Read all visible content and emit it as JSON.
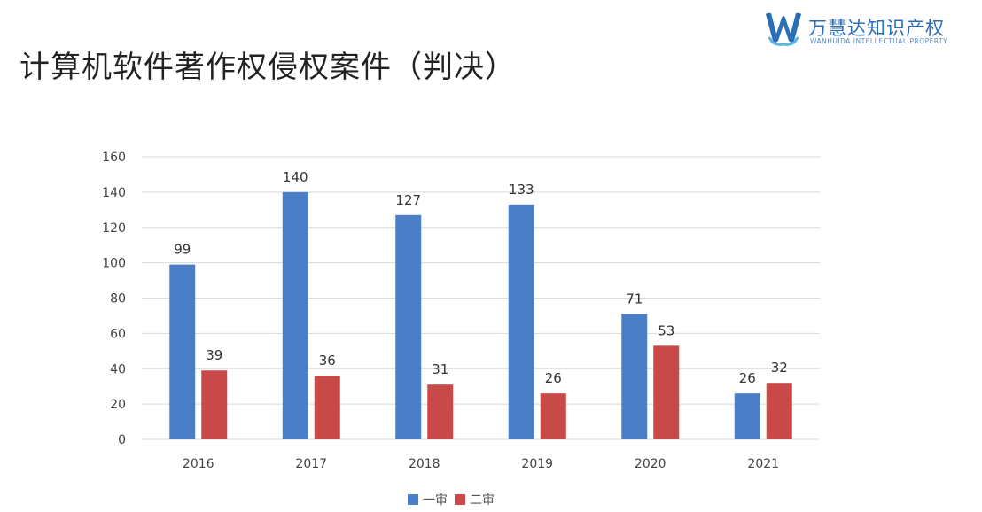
{
  "title": "计算机软件著作权侵权案件（判决）",
  "logo": {
    "name": "万慧达知识产权",
    "subtitle": "WANHUIDA INTELLECTUAL PROPERTY"
  },
  "colors": {
    "series1": "#4a7fc8",
    "series2": "#c84a48",
    "grid": "#d9d9d9",
    "axis_text": "#444444",
    "label_text": "#333333"
  },
  "chart_data": {
    "type": "bar",
    "categories": [
      "2016",
      "2017",
      "2018",
      "2019",
      "2020",
      "2021"
    ],
    "series": [
      {
        "name": "一审",
        "values": [
          99,
          140,
          127,
          133,
          71,
          26
        ]
      },
      {
        "name": "二审",
        "values": [
          39,
          36,
          31,
          26,
          53,
          32
        ]
      }
    ],
    "ylim": [
      0,
      160
    ],
    "yticks": [
      0,
      20,
      40,
      60,
      80,
      100,
      120,
      140,
      160
    ],
    "grid": true,
    "legend_position": "bottom",
    "data_labels": true
  }
}
